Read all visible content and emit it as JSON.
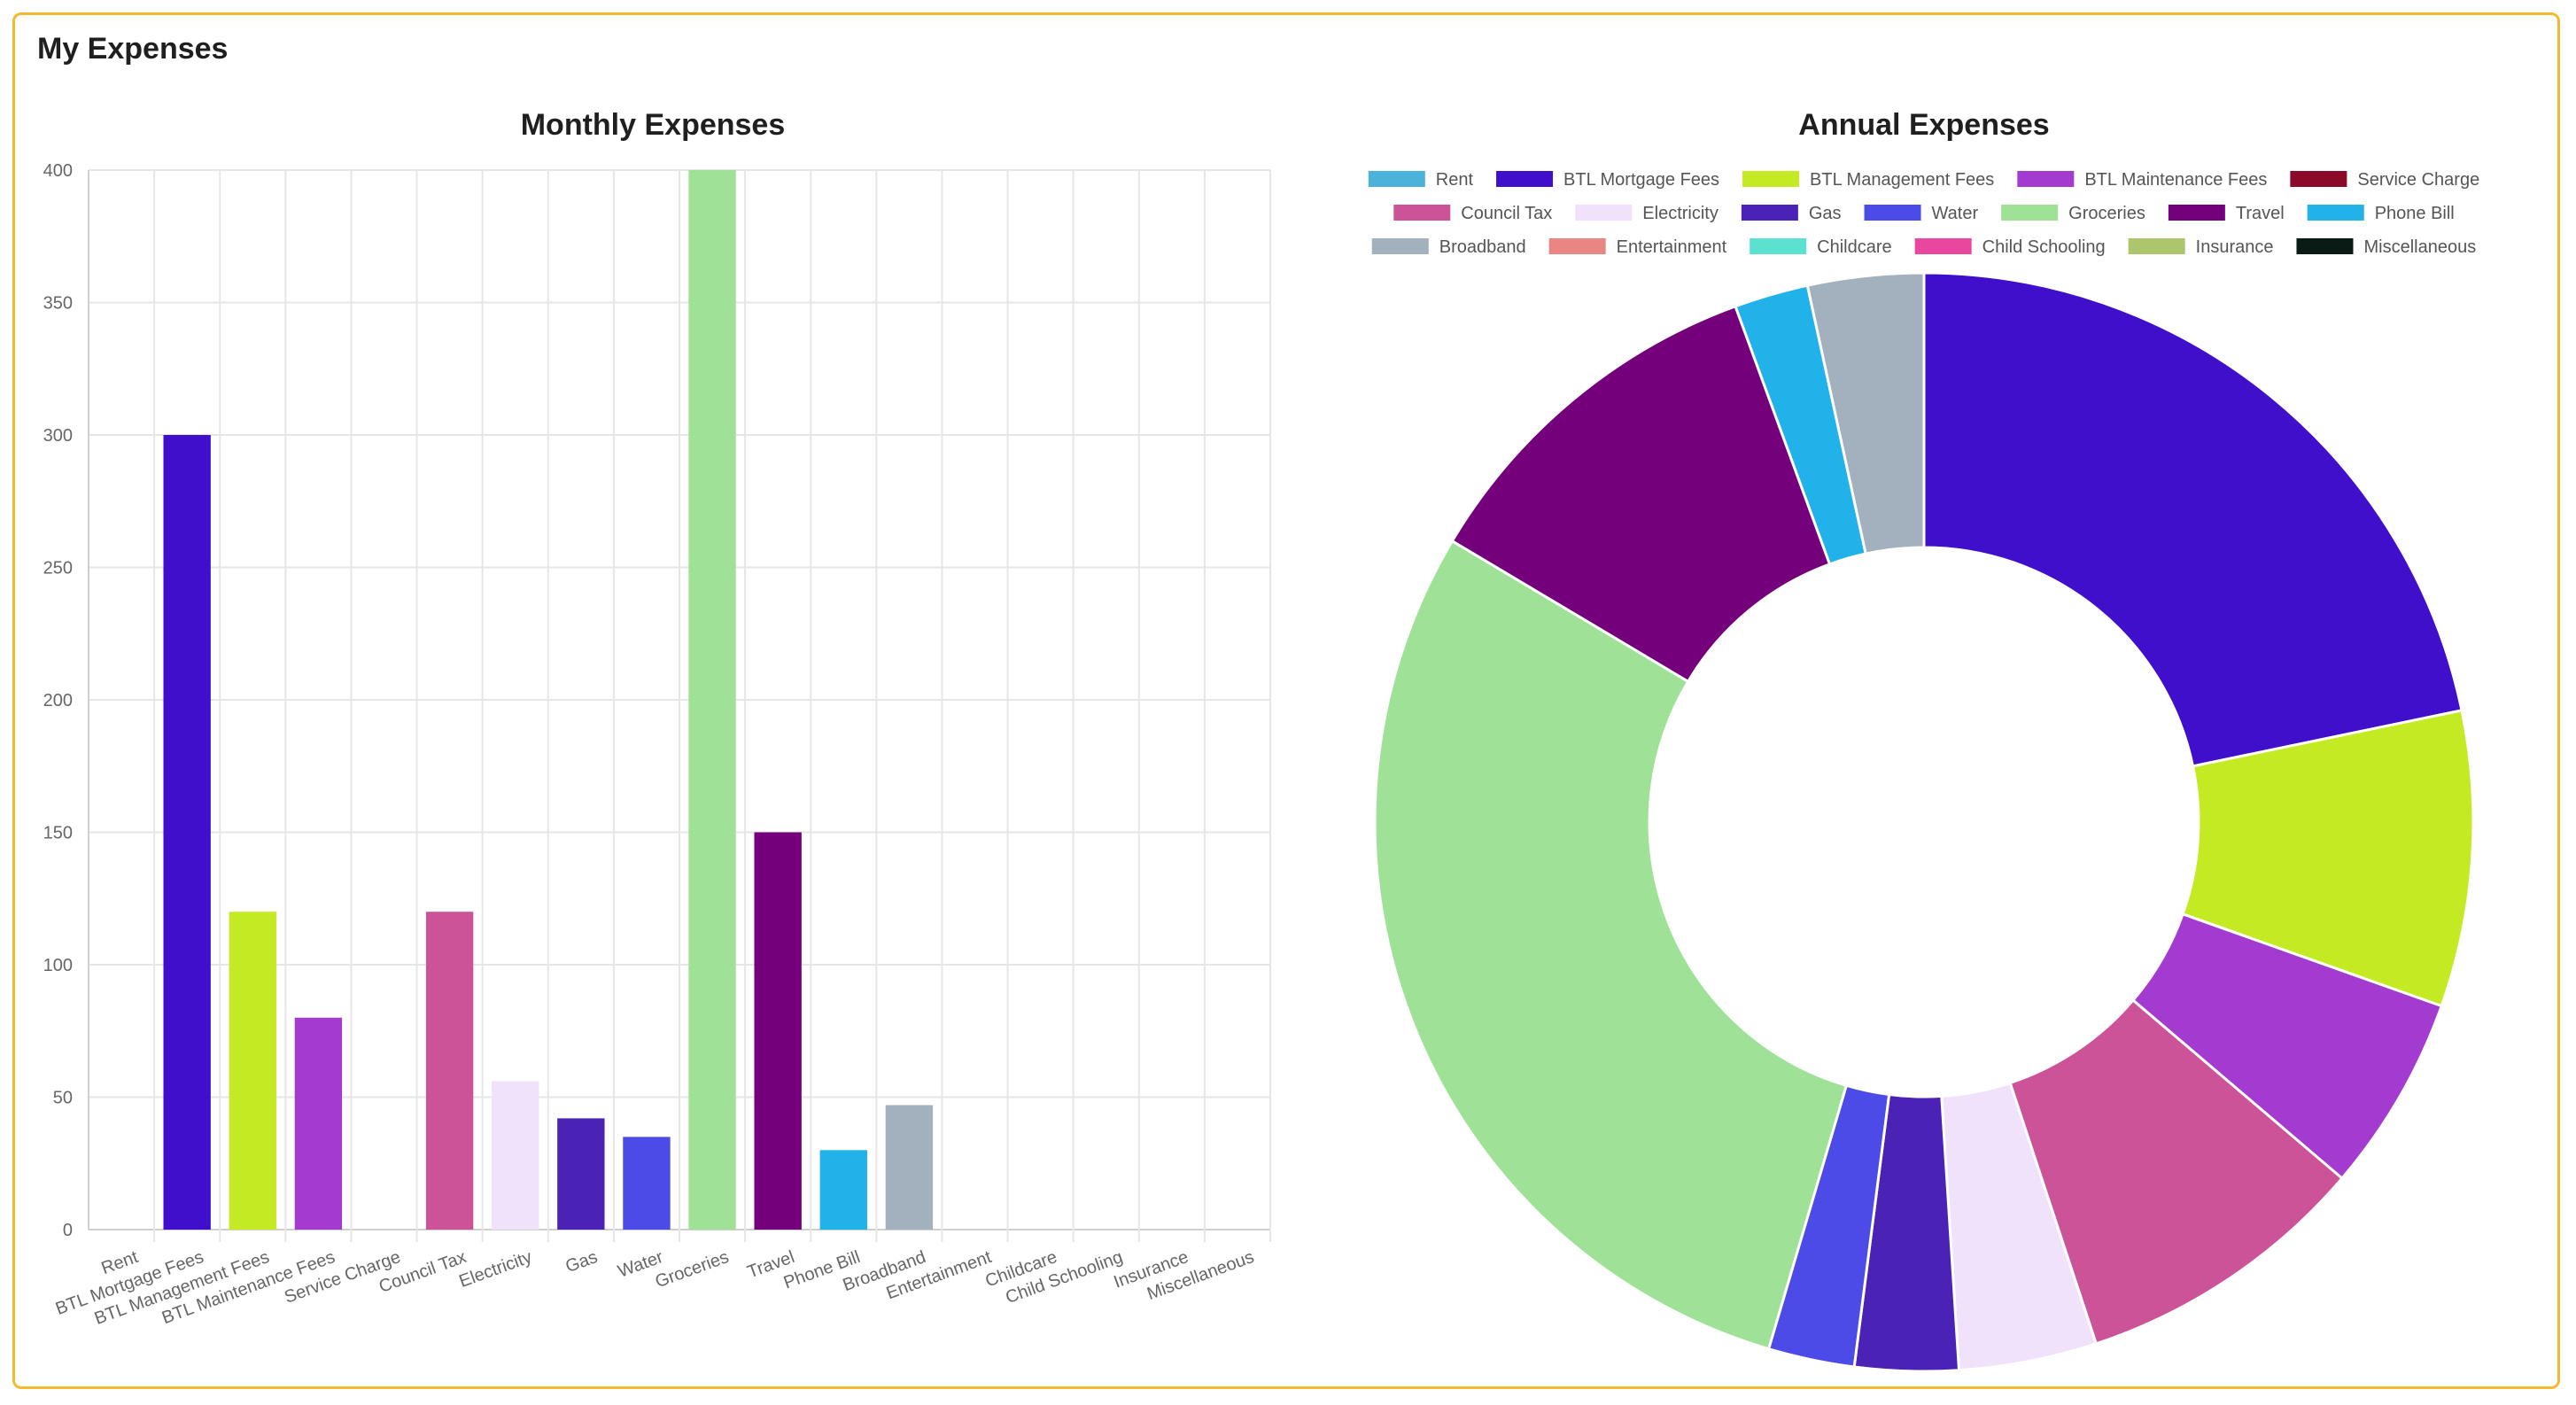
{
  "card": {
    "title": "My Expenses"
  },
  "chart_data": [
    {
      "type": "bar",
      "title": "Monthly Expenses",
      "categories": [
        "Rent",
        "BTL Mortgage Fees",
        "BTL Management Fees",
        "BTL Maintenance Fees",
        "Service Charge",
        "Council Tax",
        "Electricity",
        "Gas",
        "Water",
        "Groceries",
        "Travel",
        "Phone Bill",
        "Broadband",
        "Entertainment",
        "Childcare",
        "Child Schooling",
        "Insurance",
        "Miscellaneous"
      ],
      "values": [
        0,
        300,
        120,
        80,
        0,
        120,
        56,
        42,
        35,
        400,
        150,
        30,
        47,
        0,
        0,
        0,
        0,
        0
      ],
      "colors": [
        "#4bb3d9",
        "#3f0fcc",
        "#c4ea24",
        "#a33bd1",
        "#8b0a2a",
        "#cc5397",
        "#f1e2fb",
        "#4b22b6",
        "#4c4be8",
        "#9fe297",
        "#74007b",
        "#21b2ea",
        "#a3b0be",
        "#e98683",
        "#5ce1d0",
        "#e9479f",
        "#adc56b",
        "#0a1a14"
      ],
      "ylim": [
        0,
        400
      ],
      "yticks": [
        0,
        50,
        100,
        150,
        200,
        250,
        300,
        350,
        400
      ],
      "grid": true
    },
    {
      "type": "pie",
      "variant": "doughnut",
      "title": "Annual Expenses",
      "labels": [
        "Rent",
        "BTL Mortgage Fees",
        "BTL Management Fees",
        "BTL Maintenance Fees",
        "Service Charge",
        "Council Tax",
        "Electricity",
        "Gas",
        "Water",
        "Groceries",
        "Travel",
        "Phone Bill",
        "Broadband",
        "Entertainment",
        "Childcare",
        "Child Schooling",
        "Insurance",
        "Miscellaneous"
      ],
      "values": [
        0,
        3600,
        1440,
        960,
        0,
        1440,
        672,
        504,
        420,
        4800,
        1800,
        360,
        564,
        0,
        0,
        0,
        0,
        0
      ],
      "colors": [
        "#4bb3d9",
        "#3f0fcc",
        "#c4ea24",
        "#a33bd1",
        "#8b0a2a",
        "#cc5397",
        "#f1e2fb",
        "#4b22b6",
        "#4c4be8",
        "#9fe297",
        "#74007b",
        "#21b2ea",
        "#a3b0be",
        "#e98683",
        "#5ce1d0",
        "#e9479f",
        "#adc56b",
        "#0a1a14"
      ],
      "legend": "top"
    }
  ]
}
